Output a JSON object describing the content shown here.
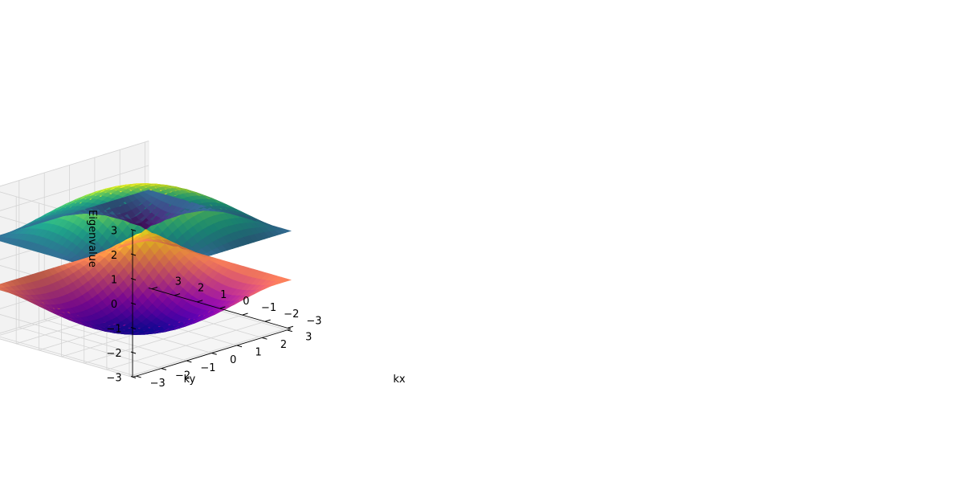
{
  "chart_data": {
    "type": "surface3d",
    "title": "",
    "xlabel": "kx",
    "ylabel": "ky",
    "zlabel": "Eigenvalue",
    "xlim": [
      -3.1416,
      3.1416
    ],
    "ylim": [
      -3.1416,
      3.1416
    ],
    "zlim": [
      -3,
      3
    ],
    "x_ticks": [
      -3,
      -2,
      -1,
      0,
      1,
      2,
      3
    ],
    "y_ticks": [
      -3,
      -2,
      -1,
      0,
      1,
      2,
      3
    ],
    "z_ticks": [
      -3,
      -2,
      -1,
      0,
      1,
      2,
      3
    ],
    "x_tick_labels": [
      "−3",
      "−2",
      "−1",
      "0",
      "1",
      "2",
      "3"
    ],
    "y_tick_labels": [
      "−3",
      "−2",
      "−1",
      "0",
      "1",
      "2",
      "3"
    ],
    "z_tick_labels": [
      "−3",
      "−2",
      "−1",
      "0",
      "1",
      "2",
      "3"
    ],
    "grid": true,
    "surfaces": [
      {
        "band": "upper",
        "formula": "+sqrt(3 + 2cos(kx) + 2cos(ky) + 2cos(kx+ky))",
        "colormap": "viridis"
      },
      {
        "band": "lower",
        "formula": "-sqrt(3 + 2cos(kx) + 2cos(ky) + 2cos(kx+ky))",
        "colormap": "plasma"
      }
    ]
  },
  "colors": {
    "pane_back": "#eeeeee",
    "pane_side": "#f2f2f2",
    "pane_floor": "#f5f5f5",
    "grid_line": "#d4d4d4",
    "pane_edge": "#e6e6e6"
  }
}
